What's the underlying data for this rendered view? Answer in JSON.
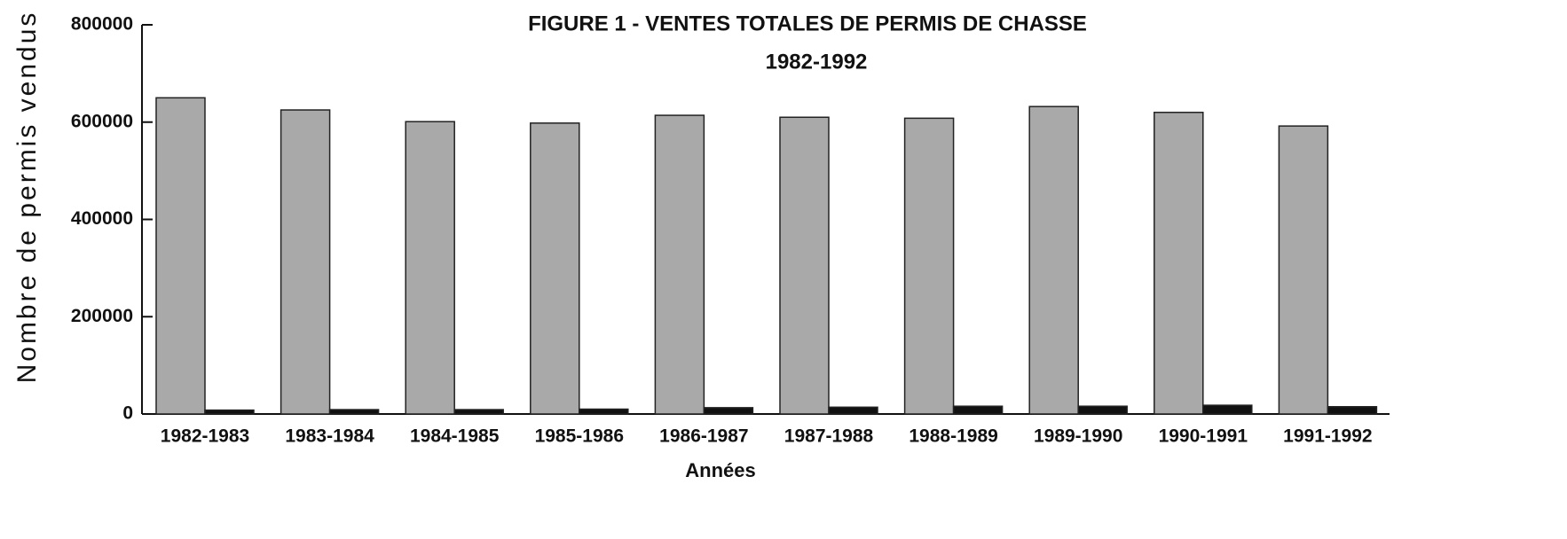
{
  "chart_data": {
    "type": "bar",
    "title": "FIGURE 1 - VENTES TOTALES DE PERMIS DE CHASSE",
    "subtitle": "1982-1992",
    "y_label": "Nombre de permis vendus",
    "x_label": "Années",
    "categories": [
      "1982-1983",
      "1983-1984",
      "1984-1985",
      "1985-1986",
      "1986-1987",
      "1987-1988",
      "1988-1989",
      "1989-1990",
      "1990-1991",
      "1991-1992"
    ],
    "series": [
      {
        "color": "#a9a9a9",
        "values": [
          650000,
          625000,
          601000,
          598000,
          614000,
          610000,
          608000,
          632000,
          620000,
          592000
        ]
      },
      {
        "color": "#111111",
        "values": [
          8000,
          9000,
          9000,
          10000,
          13000,
          14000,
          16000,
          16000,
          18000,
          15000
        ]
      }
    ],
    "ylim": [
      0,
      800000
    ],
    "yticks": [
      0,
      200000,
      400000,
      600000,
      800000
    ],
    "grid": false
  }
}
